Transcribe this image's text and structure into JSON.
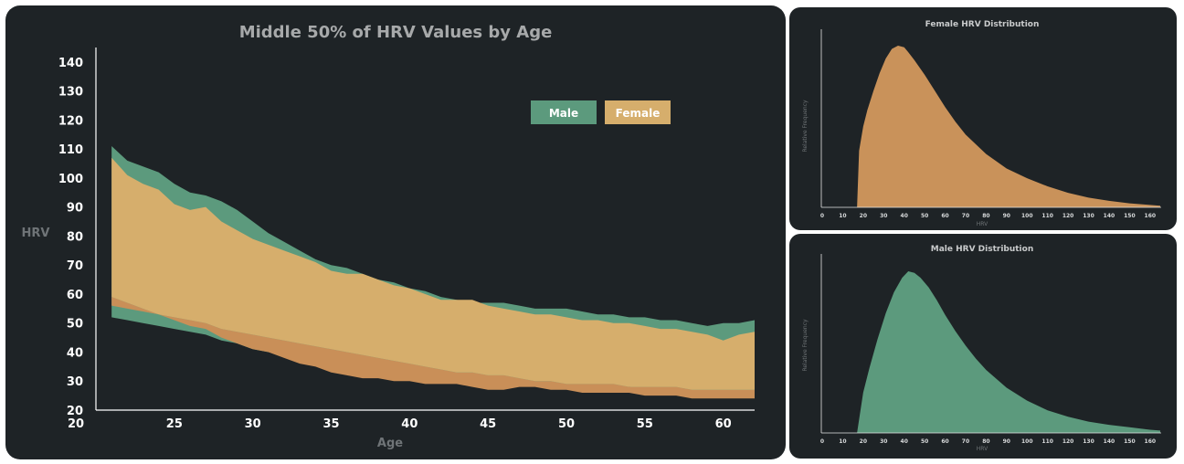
{
  "chart_data": [
    {
      "type": "area",
      "title": "Middle 50% of HRV Values by Age",
      "xlabel": "Age",
      "ylabel": "HRV",
      "xlim": [
        20,
        62
      ],
      "ylim": [
        20,
        145
      ],
      "xticks": [
        20,
        25,
        30,
        35,
        40,
        45,
        50,
        55,
        60
      ],
      "yticks": [
        20,
        30,
        40,
        50,
        60,
        70,
        80,
        90,
        100,
        110,
        120,
        130,
        140
      ],
      "legend": {
        "placement": "top-right",
        "entries": [
          "Male",
          "Female"
        ]
      },
      "colors": {
        "male": "#5c9a7d",
        "female": "#d6ae6c",
        "female_low_band": "#c98f58"
      },
      "series": [
        {
          "name": "Male",
          "x": [
            21,
            22,
            23,
            24,
            25,
            26,
            27,
            28,
            29,
            30,
            31,
            32,
            33,
            34,
            35,
            36,
            37,
            38,
            39,
            40,
            41,
            42,
            43,
            44,
            45,
            46,
            47,
            48,
            49,
            50,
            51,
            52,
            53,
            54,
            55,
            56,
            57,
            58,
            59,
            60,
            61,
            62
          ],
          "upper": [
            111,
            106,
            104,
            102,
            98,
            95,
            94,
            92,
            89,
            85,
            81,
            78,
            75,
            72,
            70,
            69,
            67,
            65,
            64,
            62,
            61,
            59,
            58,
            57,
            57,
            57,
            56,
            55,
            55,
            55,
            54,
            53,
            53,
            52,
            52,
            51,
            51,
            50,
            49,
            50,
            50,
            51
          ],
          "lower": [
            52,
            51,
            50,
            49,
            48,
            47,
            46,
            44,
            43,
            41,
            40,
            39,
            38,
            37,
            36,
            35,
            34,
            34,
            33,
            32,
            31,
            31,
            30,
            30,
            30,
            30,
            29,
            29,
            28,
            28,
            28,
            28,
            28,
            28,
            27,
            27,
            27,
            26,
            26,
            25,
            25,
            25
          ]
        },
        {
          "name": "Female",
          "x": [
            21,
            22,
            23,
            24,
            25,
            26,
            27,
            28,
            29,
            30,
            31,
            32,
            33,
            34,
            35,
            36,
            37,
            38,
            39,
            40,
            41,
            42,
            43,
            44,
            45,
            46,
            47,
            48,
            49,
            50,
            51,
            52,
            53,
            54,
            55,
            56,
            57,
            58,
            59,
            60,
            61,
            62
          ],
          "upper": [
            107,
            101,
            98,
            96,
            91,
            89,
            90,
            85,
            82,
            79,
            77,
            75,
            73,
            71,
            68,
            67,
            67,
            65,
            63,
            62,
            60,
            58,
            58,
            58,
            56,
            55,
            54,
            53,
            53,
            52,
            51,
            51,
            50,
            50,
            49,
            48,
            48,
            47,
            46,
            44,
            46,
            47
          ],
          "lower": [
            56,
            55,
            54,
            53,
            52,
            51,
            50,
            48,
            47,
            46,
            45,
            44,
            43,
            42,
            41,
            40,
            39,
            38,
            37,
            36,
            35,
            34,
            33,
            33,
            32,
            32,
            31,
            30,
            30,
            29,
            29,
            29,
            29,
            28,
            28,
            28,
            28,
            27,
            27,
            27,
            27,
            27
          ],
          "low_band": [
            59,
            57,
            55,
            53,
            51,
            49,
            48,
            45,
            43,
            41,
            40,
            38,
            36,
            35,
            33,
            32,
            31,
            31,
            30,
            30,
            29,
            29,
            29,
            28,
            27,
            27,
            28,
            28,
            27,
            27,
            26,
            26,
            26,
            26,
            25,
            25,
            25,
            24,
            24,
            24,
            24,
            24
          ]
        }
      ]
    },
    {
      "type": "area",
      "title": "Female HRV Distribution",
      "xlabel": "HRV",
      "ylabel": "Relative Frequency",
      "xlim": [
        0,
        165
      ],
      "xticks": [
        0,
        10,
        20,
        30,
        40,
        50,
        60,
        70,
        80,
        90,
        100,
        110,
        120,
        130,
        140,
        150,
        160
      ],
      "color": "#c9925a",
      "x": [
        17,
        18,
        20,
        22,
        25,
        28,
        31,
        34,
        37,
        40,
        42,
        45,
        50,
        55,
        60,
        65,
        70,
        75,
        80,
        90,
        100,
        110,
        120,
        130,
        140,
        150,
        160,
        165
      ],
      "y": [
        0.0,
        0.35,
        0.5,
        0.6,
        0.72,
        0.83,
        0.92,
        0.98,
        1.0,
        0.99,
        0.96,
        0.91,
        0.82,
        0.72,
        0.62,
        0.53,
        0.45,
        0.39,
        0.33,
        0.24,
        0.18,
        0.13,
        0.09,
        0.06,
        0.04,
        0.025,
        0.015,
        0.01
      ]
    },
    {
      "type": "area",
      "title": "Male HRV Distribution",
      "xlabel": "HRV",
      "ylabel": "Relative Frequency",
      "xlim": [
        0,
        165
      ],
      "xticks": [
        0,
        10,
        20,
        30,
        40,
        50,
        60,
        70,
        80,
        90,
        100,
        110,
        120,
        130,
        140,
        150,
        160
      ],
      "color": "#5c9a7d",
      "x": [
        17,
        20,
        23,
        27,
        31,
        35,
        39,
        42,
        45,
        48,
        52,
        56,
        60,
        65,
        70,
        75,
        80,
        90,
        100,
        110,
        120,
        130,
        140,
        150,
        160,
        165
      ],
      "y": [
        0.0,
        0.25,
        0.4,
        0.58,
        0.74,
        0.87,
        0.96,
        1.0,
        0.99,
        0.96,
        0.9,
        0.82,
        0.73,
        0.63,
        0.54,
        0.46,
        0.39,
        0.28,
        0.2,
        0.14,
        0.1,
        0.07,
        0.05,
        0.035,
        0.02,
        0.015
      ]
    }
  ]
}
